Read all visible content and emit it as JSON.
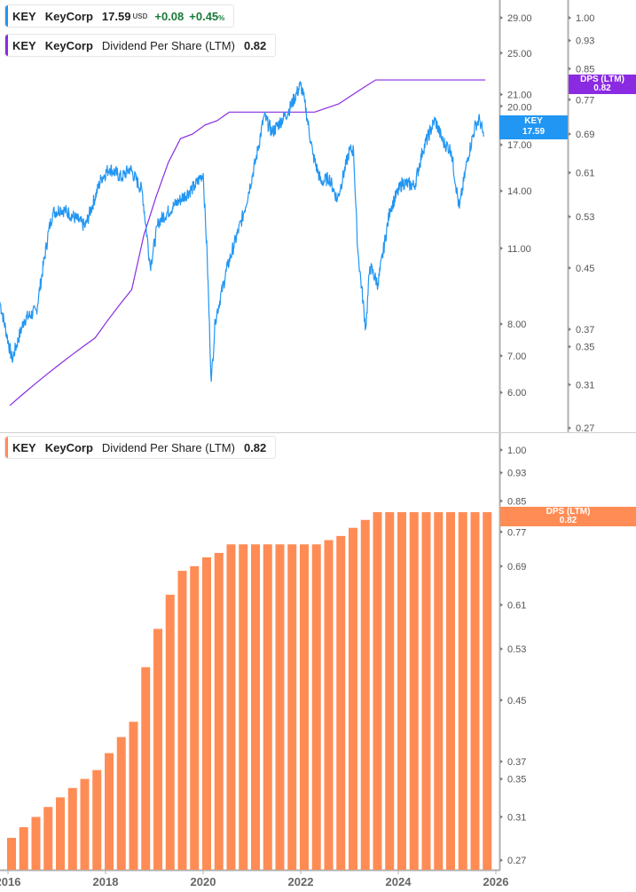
{
  "legend_price": {
    "ticker": "KEY",
    "name": "KeyCorp",
    "price": "17.59",
    "currency": "USD",
    "change": "+0.08",
    "change_pct": "+0.45",
    "pct_sign": "%"
  },
  "legend_dps_top": {
    "ticker": "KEY",
    "name": "KeyCorp",
    "metric": "Dividend Per Share (LTM)",
    "value": "0.82"
  },
  "legend_dps_bottom": {
    "ticker": "KEY",
    "name": "KeyCorp",
    "metric": "Dividend Per Share (LTM)",
    "value": "0.82"
  },
  "tags": {
    "price": {
      "label": "KEY",
      "value": "17.59"
    },
    "dps_top": {
      "label": "DPS (LTM)",
      "value": "0.82"
    },
    "dps_bottom": {
      "label": "DPS (LTM)",
      "value": "0.82"
    }
  },
  "colors": {
    "price": "#2196f3",
    "dps_line": "#8a2be2",
    "dps_bar": "#ff8c55",
    "axis": "#b0b0b0",
    "text": "#555555",
    "positive": "#1b7a3a"
  },
  "chart_data": [
    {
      "type": "line",
      "scale": "log",
      "series": [
        {
          "name": "KEY",
          "axis": "left",
          "dates": [
            "2015-11",
            "2016-02",
            "2016-05",
            "2016-08",
            "2016-11",
            "2016-12",
            "2017-02",
            "2017-04",
            "2017-08",
            "2017-12",
            "2018-02",
            "2018-05",
            "2018-07",
            "2018-10",
            "2018-12",
            "2019-02",
            "2019-06",
            "2019-11",
            "2020-01",
            "2020-02",
            "2020-03",
            "2020-04",
            "2020-07",
            "2020-11",
            "2021-02",
            "2021-04",
            "2021-06",
            "2021-10",
            "2022-01",
            "2022-02",
            "2022-04",
            "2022-06",
            "2022-08",
            "2022-10",
            "2023-01",
            "2023-02",
            "2023-03",
            "2023-05",
            "2023-06",
            "2023-08",
            "2023-11",
            "2024-02",
            "2024-05",
            "2024-07",
            "2024-10",
            "2024-12",
            "2025-02",
            "2025-04",
            "2025-06",
            "2025-08",
            "2025-09",
            "2025-10"
          ],
          "values": [
            8.78,
            6.89,
            8.15,
            8.47,
            11.83,
            12.76,
            13.0,
            12.76,
            12.06,
            14.8,
            15.4,
            14.8,
            15.4,
            14.0,
            10.2,
            12.3,
            13.2,
            14.3,
            15.1,
            10.6,
            6.28,
            8.15,
            10.2,
            12.76,
            16.0,
            19.2,
            17.9,
            19.6,
            21.9,
            20.3,
            16.3,
            14.5,
            14.8,
            13.5,
            16.6,
            16.6,
            11.0,
            7.85,
            10.2,
            9.47,
            13.0,
            14.5,
            14.3,
            16.6,
            18.9,
            17.2,
            16.6,
            13.0,
            16.0,
            18.5,
            18.9,
            17.59
          ]
        },
        {
          "name": "DPS (LTM)",
          "axis": "right",
          "dates": "quarters"
        }
      ],
      "left_axis_ticks": [
        "29.00",
        "25.00",
        "21.00",
        "20.00",
        "17.00",
        "14.00",
        "11.00",
        "8.00",
        "7.00",
        "6.00"
      ],
      "right_axis_ticks": [
        "1.00",
        "0.93",
        "0.85",
        "0.77",
        "0.69",
        "0.61",
        "0.53",
        "0.45",
        "0.37",
        "0.35",
        "0.31",
        "0.27"
      ],
      "left_ylim": [
        5.6,
        31
      ],
      "right_ylim": [
        0.26,
        1.04
      ]
    },
    {
      "type": "bar",
      "scale": "log",
      "categories": [
        "2016-Q1",
        "2016-Q2",
        "2016-Q3",
        "2016-Q4",
        "2017-Q1",
        "2017-Q2",
        "2017-Q3",
        "2017-Q4",
        "2018-Q1",
        "2018-Q2",
        "2018-Q3",
        "2018-Q4",
        "2019-Q1",
        "2019-Q2",
        "2019-Q3",
        "2019-Q4",
        "2020-Q1",
        "2020-Q2",
        "2020-Q3",
        "2020-Q4",
        "2021-Q1",
        "2021-Q2",
        "2021-Q3",
        "2021-Q4",
        "2022-Q1",
        "2022-Q2",
        "2022-Q3",
        "2022-Q4",
        "2023-Q1",
        "2023-Q2",
        "2023-Q3",
        "2023-Q4",
        "2024-Q1",
        "2024-Q2",
        "2024-Q3",
        "2024-Q4",
        "2025-Q1",
        "2025-Q2",
        "2025-Q3",
        "2025-Q4"
      ],
      "values": [
        0.29,
        0.3,
        0.31,
        0.32,
        0.33,
        0.34,
        0.35,
        0.36,
        0.38,
        0.4,
        0.42,
        0.5,
        0.565,
        0.63,
        0.68,
        0.69,
        0.71,
        0.72,
        0.74,
        0.74,
        0.74,
        0.74,
        0.74,
        0.74,
        0.74,
        0.74,
        0.75,
        0.76,
        0.78,
        0.8,
        0.82,
        0.82,
        0.82,
        0.82,
        0.82,
        0.82,
        0.82,
        0.82,
        0.82,
        0.82
      ],
      "y_axis_ticks": [
        "1.00",
        "0.93",
        "0.85",
        "0.77",
        "0.69",
        "0.61",
        "0.53",
        "0.45",
        "0.37",
        "0.35",
        "0.31",
        "0.27"
      ],
      "x_axis_ticks": [
        "2016",
        "2018",
        "2020",
        "2022",
        "2024",
        "2026"
      ],
      "ylim": [
        0.26,
        1.04
      ],
      "xlim": [
        "2016",
        "2026"
      ]
    }
  ]
}
